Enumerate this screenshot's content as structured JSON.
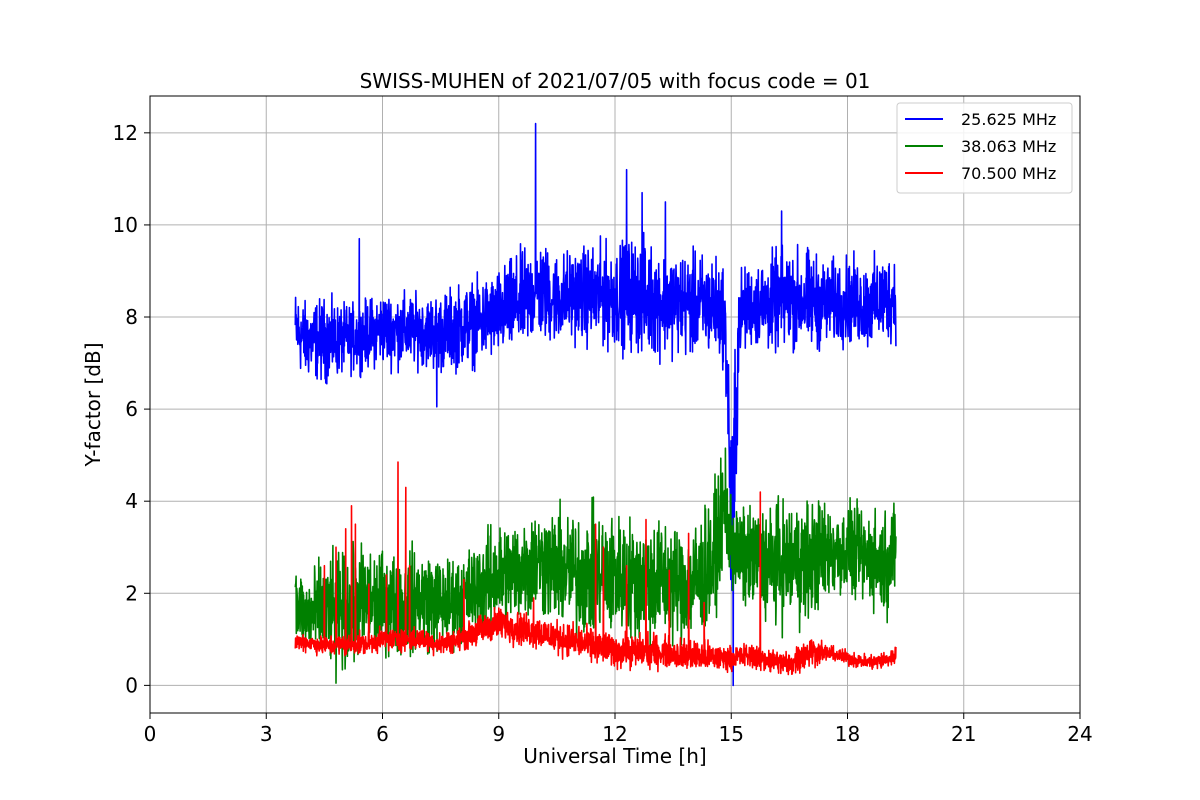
{
  "chart_data": {
    "type": "line",
    "title": "SWISS-MUHEN of 2021/07/05 with focus code = 01",
    "xlabel": "Universal Time [h]",
    "ylabel": "Y-factor [dB]",
    "xlim": [
      0,
      24
    ],
    "ylim": [
      -0.6,
      12.8
    ],
    "x_ticks": [
      0,
      3,
      6,
      9,
      12,
      15,
      18,
      21,
      24
    ],
    "x_tick_labels": [
      "0",
      "3",
      "6",
      "9",
      "12",
      "15",
      "18",
      "21",
      "24"
    ],
    "y_ticks": [
      0,
      2,
      4,
      6,
      8,
      10,
      12
    ],
    "y_tick_labels": [
      "0",
      "2",
      "4",
      "6",
      "8",
      "10",
      "12"
    ],
    "grid": true,
    "legend_position": "top-right",
    "series": [
      {
        "name": "25.625 MHz",
        "color": "#0000ff",
        "x": [
          3.75,
          4.0,
          4.5,
          5.0,
          5.5,
          6.0,
          6.5,
          7.0,
          7.5,
          8.0,
          8.5,
          9.0,
          9.5,
          10.0,
          10.5,
          11.0,
          11.5,
          12.0,
          12.5,
          13.0,
          13.5,
          14.0,
          14.5,
          14.8,
          14.9,
          15.0,
          15.1,
          15.2,
          15.5,
          16.0,
          16.5,
          17.0,
          17.5,
          18.0,
          18.5,
          19.0,
          19.25
        ],
        "low": [
          6.7,
          6.5,
          6.4,
          6.6,
          6.7,
          6.8,
          6.7,
          6.8,
          6.6,
          6.7,
          6.8,
          6.9,
          7.0,
          7.2,
          7.2,
          7.3,
          7.1,
          7.1,
          7.0,
          6.9,
          7.0,
          6.9,
          6.9,
          6.8,
          5.5,
          0.0,
          2.0,
          6.9,
          7.2,
          7.0,
          7.1,
          7.0,
          7.2,
          7.2,
          7.1,
          7.2,
          7.3
        ],
        "high": [
          8.8,
          8.5,
          8.6,
          8.4,
          8.5,
          8.7,
          8.7,
          8.6,
          8.7,
          8.9,
          9.0,
          9.2,
          9.6,
          9.9,
          9.6,
          9.7,
          9.8,
          9.8,
          10.0,
          9.8,
          9.7,
          9.6,
          9.6,
          9.4,
          8.2,
          6.5,
          8.5,
          9.2,
          9.3,
          9.6,
          9.7,
          9.7,
          9.4,
          9.5,
          9.4,
          9.6,
          9.6
        ],
        "peaks": [
          {
            "x": 5.4,
            "y": 9.7
          },
          {
            "x": 9.95,
            "y": 12.2
          },
          {
            "x": 12.3,
            "y": 11.2
          },
          {
            "x": 12.7,
            "y": 10.7
          },
          {
            "x": 13.3,
            "y": 10.5
          },
          {
            "x": 16.3,
            "y": 10.3
          },
          {
            "x": 7.4,
            "y": 6.05
          },
          {
            "x": 15.05,
            "y": 0.0
          }
        ]
      },
      {
        "name": "38.063 MHz",
        "color": "#008000",
        "x": [
          3.75,
          4.0,
          4.5,
          5.0,
          5.5,
          6.0,
          6.5,
          7.0,
          7.5,
          8.0,
          8.5,
          9.0,
          9.5,
          10.0,
          10.5,
          11.0,
          11.5,
          12.0,
          12.5,
          13.0,
          13.5,
          14.0,
          14.5,
          14.8,
          15.0,
          15.2,
          15.5,
          16.0,
          16.5,
          17.0,
          17.5,
          18.0,
          18.5,
          19.0,
          19.25
        ],
        "low": [
          0.7,
          0.4,
          0.2,
          0.1,
          0.3,
          0.5,
          0.4,
          0.5,
          0.5,
          0.7,
          0.9,
          1.0,
          1.1,
          1.3,
          1.0,
          0.8,
          0.7,
          0.8,
          0.7,
          0.6,
          0.7,
          0.7,
          0.8,
          2.5,
          1.8,
          1.5,
          1.4,
          1.1,
          1.0,
          1.1,
          1.6,
          1.7,
          1.5,
          1.3,
          1.6
        ],
        "high": [
          2.9,
          2.6,
          3.0,
          3.1,
          3.3,
          3.1,
          3.1,
          3.3,
          3.0,
          3.0,
          3.4,
          3.8,
          3.9,
          4.1,
          4.1,
          4.0,
          4.1,
          4.0,
          3.9,
          4.0,
          3.8,
          3.8,
          4.4,
          5.1,
          4.6,
          4.0,
          4.1,
          4.2,
          4.3,
          4.4,
          4.2,
          4.1,
          4.0,
          4.1,
          4.2
        ],
        "peaks": [
          {
            "x": 14.85,
            "y": 5.15
          },
          {
            "x": 4.8,
            "y": 0.05
          }
        ]
      },
      {
        "name": "70.500 MHz",
        "color": "#ff0000",
        "x": [
          3.75,
          4.0,
          4.5,
          5.0,
          5.5,
          6.0,
          6.5,
          7.0,
          7.5,
          8.0,
          8.5,
          9.0,
          9.5,
          10.0,
          10.5,
          11.0,
          11.5,
          12.0,
          12.5,
          13.0,
          13.5,
          14.0,
          14.5,
          15.0,
          15.5,
          16.0,
          16.5,
          17.0,
          17.5,
          18.0,
          18.5,
          19.0,
          19.25
        ],
        "low": [
          0.7,
          0.7,
          0.6,
          0.6,
          0.6,
          0.7,
          0.7,
          0.7,
          0.6,
          0.7,
          0.8,
          0.9,
          0.8,
          0.7,
          0.6,
          0.5,
          0.4,
          0.3,
          0.3,
          0.3,
          0.3,
          0.2,
          0.2,
          0.3,
          0.3,
          0.2,
          0.1,
          0.3,
          0.5,
          0.4,
          0.3,
          0.3,
          0.4
        ],
        "high": [
          1.2,
          1.2,
          1.1,
          1.2,
          1.2,
          1.3,
          1.3,
          1.3,
          1.2,
          1.3,
          1.6,
          1.8,
          1.7,
          1.6,
          1.5,
          1.4,
          1.3,
          1.2,
          1.2,
          1.2,
          1.1,
          1.1,
          1.0,
          0.9,
          1.0,
          0.9,
          0.8,
          1.2,
          0.9,
          0.8,
          0.7,
          0.8,
          0.9
        ],
        "spikes": [
          {
            "x": 4.5,
            "y": 2.6
          },
          {
            "x": 4.8,
            "y": 3.0
          },
          {
            "x": 5.05,
            "y": 3.4
          },
          {
            "x": 5.2,
            "y": 3.9
          },
          {
            "x": 5.3,
            "y": 3.5
          },
          {
            "x": 5.65,
            "y": 2.2
          },
          {
            "x": 6.1,
            "y": 2.4
          },
          {
            "x": 6.4,
            "y": 4.85
          },
          {
            "x": 6.6,
            "y": 4.3
          },
          {
            "x": 6.7,
            "y": 2.6
          },
          {
            "x": 8.1,
            "y": 2.3
          },
          {
            "x": 9.9,
            "y": 1.9
          },
          {
            "x": 11.5,
            "y": 3.5
          },
          {
            "x": 11.7,
            "y": 3.0
          },
          {
            "x": 12.3,
            "y": 2.6
          },
          {
            "x": 12.8,
            "y": 3.6
          },
          {
            "x": 13.4,
            "y": 2.5
          },
          {
            "x": 13.9,
            "y": 3.3
          },
          {
            "x": 14.3,
            "y": 1.8
          },
          {
            "x": 15.75,
            "y": 4.2
          }
        ]
      }
    ]
  }
}
